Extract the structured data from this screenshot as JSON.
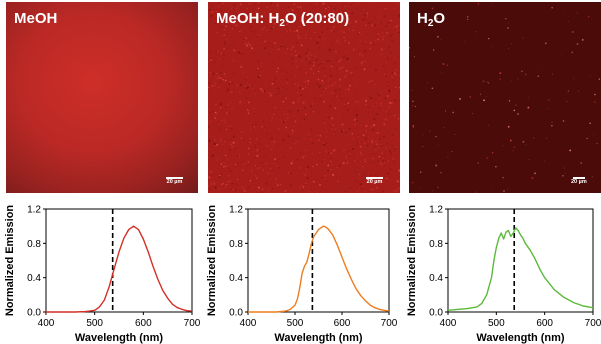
{
  "panels": [
    {
      "label": "MeOH",
      "label_sub": "",
      "label_tail": "",
      "scale": "20 µm"
    },
    {
      "label": "MeOH: H",
      "label_sub": "2",
      "label_tail": "O (20:80)",
      "scale": "20 µm"
    },
    {
      "label": "H",
      "label_sub": "2",
      "label_tail": "O",
      "scale": "20 µm"
    }
  ],
  "colors": {
    "meoh": "#d32f27",
    "mix": "#ee7d1f",
    "water": "#5cba3b",
    "dashed": "#000000"
  },
  "chart_data": [
    {
      "type": "line",
      "xlabel": "Wavelength (nm)",
      "ylabel": "Normalized Emission",
      "xlim": [
        400,
        700
      ],
      "ylim": [
        0.0,
        1.2
      ],
      "xticks": [
        400,
        500,
        600,
        700
      ],
      "yticks": [
        0.0,
        0.4,
        0.8,
        1.2
      ],
      "ytick_labels": [
        "0.0",
        "0.4",
        "0.8",
        "1.2"
      ],
      "vline": 537,
      "series": [
        {
          "color": "#d32f27",
          "x": [
            400,
            460,
            480,
            490,
            500,
            510,
            520,
            530,
            540,
            550,
            560,
            570,
            580,
            590,
            600,
            610,
            620,
            630,
            640,
            650,
            660,
            670,
            680,
            690,
            700
          ],
          "y": [
            0.0,
            0.0,
            0.005,
            0.01,
            0.02,
            0.06,
            0.14,
            0.3,
            0.5,
            0.7,
            0.86,
            0.96,
            1.0,
            0.96,
            0.85,
            0.7,
            0.53,
            0.38,
            0.25,
            0.16,
            0.09,
            0.05,
            0.03,
            0.015,
            0.01
          ]
        }
      ]
    },
    {
      "type": "line",
      "xlabel": "Wavelength (nm)",
      "ylabel": "Normalized Emission",
      "xlim": [
        400,
        700
      ],
      "ylim": [
        0.0,
        1.2
      ],
      "xticks": [
        400,
        500,
        600,
        700
      ],
      "yticks": [
        0.0,
        0.4,
        0.8,
        1.2
      ],
      "ytick_labels": [
        "0.0",
        "0.4",
        "0.8",
        "1.2"
      ],
      "vline": 537,
      "series": [
        {
          "color": "#ee7d1f",
          "x": [
            400,
            460,
            480,
            490,
            500,
            505,
            510,
            515,
            520,
            525,
            530,
            535,
            540,
            550,
            560,
            565,
            570,
            580,
            590,
            600,
            610,
            620,
            630,
            640,
            650,
            660,
            670,
            680,
            690,
            700
          ],
          "y": [
            0.0,
            0.0,
            0.01,
            0.03,
            0.08,
            0.15,
            0.28,
            0.45,
            0.53,
            0.58,
            0.68,
            0.8,
            0.88,
            0.96,
            1.0,
            0.99,
            0.97,
            0.9,
            0.78,
            0.64,
            0.5,
            0.38,
            0.27,
            0.19,
            0.13,
            0.08,
            0.05,
            0.03,
            0.02,
            0.01
          ]
        }
      ]
    },
    {
      "type": "line",
      "xlabel": "Wavelength (nm)",
      "ylabel": "Normalized Emission",
      "xlim": [
        400,
        700
      ],
      "ylim": [
        0.0,
        1.2
      ],
      "xticks": [
        400,
        500,
        600,
        700
      ],
      "yticks": [
        0.0,
        0.4,
        0.8,
        1.2
      ],
      "ytick_labels": [
        "0.0",
        "0.4",
        "0.8",
        "1.2"
      ],
      "vline": 537,
      "series": [
        {
          "color": "#5cba3b",
          "x": [
            400,
            420,
            440,
            460,
            470,
            480,
            490,
            495,
            500,
            505,
            510,
            515,
            520,
            525,
            530,
            535,
            540,
            545,
            550,
            555,
            560,
            570,
            580,
            590,
            600,
            620,
            640,
            660,
            680,
            700
          ],
          "y": [
            0.02,
            0.03,
            0.04,
            0.06,
            0.1,
            0.2,
            0.4,
            0.6,
            0.75,
            0.86,
            0.92,
            0.85,
            0.93,
            0.95,
            0.88,
            0.92,
            0.98,
            0.95,
            0.9,
            0.86,
            0.8,
            0.72,
            0.62,
            0.5,
            0.4,
            0.26,
            0.17,
            0.11,
            0.07,
            0.05
          ]
        }
      ]
    }
  ]
}
